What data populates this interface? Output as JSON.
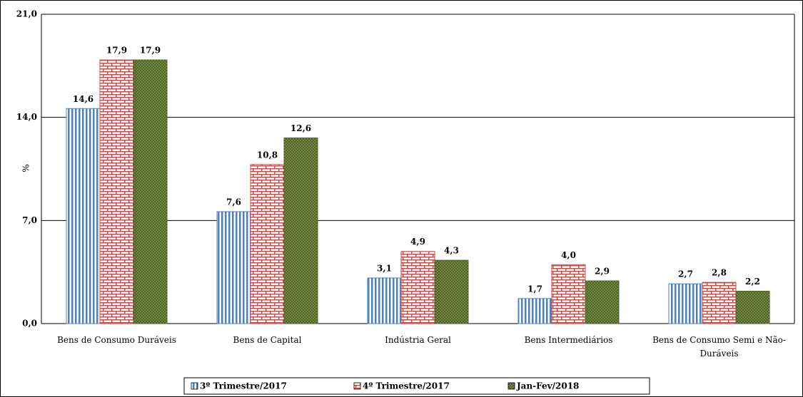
{
  "chart_data": {
    "type": "bar",
    "y_label": "%",
    "categories": [
      "Bens de Consumo Duráveis",
      "Bens de Capital",
      "Indústria Geral",
      "Bens Intermediários",
      "Bens de Consumo Semi e Não-Duráveis"
    ],
    "series": [
      {
        "name": "3º Trimestre/2017",
        "color": "#4f81bd",
        "pattern": "stripes",
        "values": [
          14.6,
          7.6,
          3.1,
          1.7,
          2.7
        ],
        "value_labels": [
          "14,6",
          "7,6",
          "3,1",
          "1,7",
          "2,7"
        ]
      },
      {
        "name": "4º Trimestre/2017",
        "color": "#c0504d",
        "pattern": "brick",
        "values": [
          17.9,
          10.8,
          4.9,
          4.0,
          2.8
        ],
        "value_labels": [
          "17,9",
          "10,8",
          "4,9",
          "4,0",
          "2,8"
        ]
      },
      {
        "name": "Jan-Fev/2018",
        "color": "#4f6228",
        "pattern": "dots",
        "values": [
          17.9,
          12.6,
          4.3,
          2.9,
          2.2
        ],
        "value_labels": [
          "17,9",
          "12,6",
          "4,3",
          "2,9",
          "2,2"
        ]
      }
    ],
    "ylim": [
      0,
      21
    ],
    "yticks": [
      {
        "value": 0,
        "label": "0,0"
      },
      {
        "value": 7,
        "label": "7,0"
      },
      {
        "value": 14,
        "label": "14,0"
      },
      {
        "value": 21,
        "label": "21,0"
      }
    ],
    "grid": true,
    "legend": "bottom"
  }
}
